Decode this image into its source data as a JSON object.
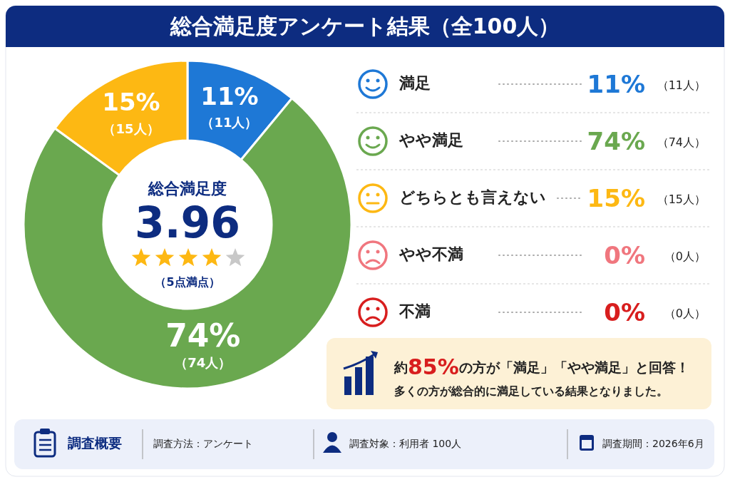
{
  "chart_data": {
    "type": "donut",
    "title": "総合満足度アンケート結果（全100人）",
    "categories": [
      "満足",
      "やや満足",
      "どちらとも言えない",
      "やや不満",
      "不満"
    ],
    "values": [
      11,
      74,
      15,
      0,
      0
    ],
    "colors": [
      "#1e78d6",
      "#6aa84f",
      "#fdb813",
      "#f0767e",
      "#d81e1e"
    ],
    "value_labels": [
      "11%",
      "74%",
      "15%",
      "0%",
      "0%"
    ],
    "legend": "right",
    "annotations": [
      "総合満足度",
      "3.96",
      "（5点満点）",
      "約85%の方が「満足」「やや満足」と回答！",
      "多くの方が総合的に満足している結果となりました。",
      "調査概要",
      "調査方法：アンケート",
      "調査対象：利用者 100人",
      "調査期間：2026年6月",
      "（11人）",
      "（74人）",
      "（15人）",
      "（0人）",
      "（0人）"
    ]
  }
}
